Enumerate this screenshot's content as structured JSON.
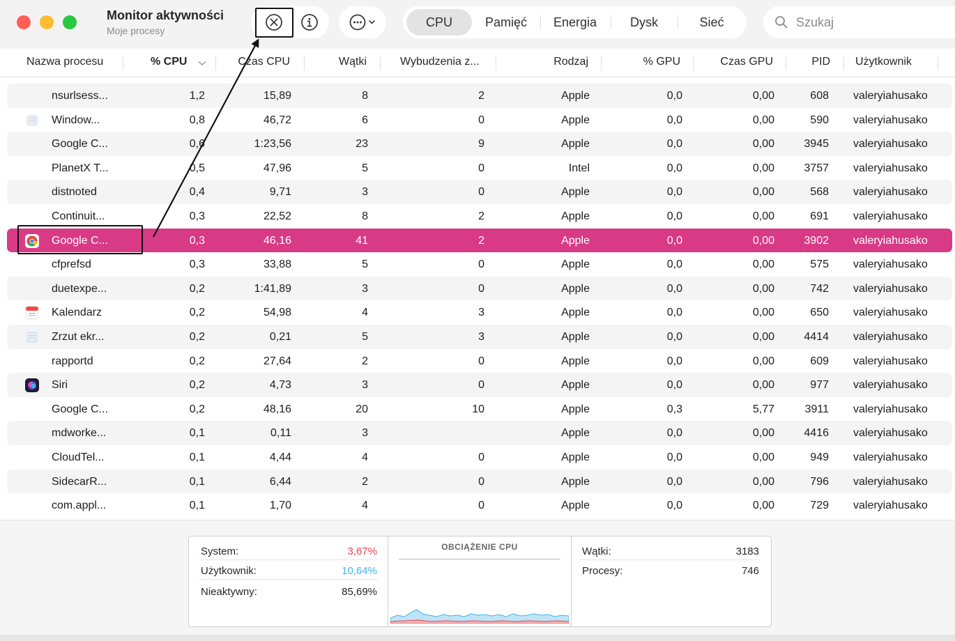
{
  "window": {
    "title": "Monitor aktywności",
    "subtitle": "Moje procesy"
  },
  "toolbar": {
    "stop_icon": "xmark-circle-icon",
    "info_icon": "info-circle-icon",
    "more_icon": "ellipsis-circle-icon"
  },
  "tabs": [
    {
      "label": "CPU",
      "active": true
    },
    {
      "label": "Pamięć",
      "active": false
    },
    {
      "label": "Energia",
      "active": false
    },
    {
      "label": "Dysk",
      "active": false
    },
    {
      "label": "Sieć",
      "active": false
    }
  ],
  "search": {
    "placeholder": "Szukaj"
  },
  "columns": {
    "name": "Nazwa procesu",
    "cpu": "% CPU",
    "cputime": "Czas CPU",
    "threads": "Wątki",
    "wakeups": "Wybudzenia z...",
    "kind": "Rodzaj",
    "gpu": "% GPU",
    "gputime": "Czas GPU",
    "pid": "PID",
    "user": "Użytkownik"
  },
  "rows": [
    {
      "name": "nsurlsess...",
      "cpu": "1,2",
      "cputime": "15,89",
      "threads": "8",
      "wakeups": "2",
      "kind": "Apple",
      "gpu": "0,0",
      "gputime": "0,00",
      "pid": "608",
      "user": "valeryiahusako",
      "icon": "none"
    },
    {
      "name": "Window...",
      "cpu": "0,8",
      "cputime": "46,72",
      "threads": "6",
      "wakeups": "0",
      "kind": "Apple",
      "gpu": "0,0",
      "gputime": "0,00",
      "pid": "590",
      "user": "valeryiahusako",
      "icon": "window-icon"
    },
    {
      "name": "Google C...",
      "cpu": "0,6",
      "cputime": "1:23,56",
      "threads": "23",
      "wakeups": "9",
      "kind": "Apple",
      "gpu": "0,0",
      "gputime": "0,00",
      "pid": "3945",
      "user": "valeryiahusako",
      "icon": "none"
    },
    {
      "name": "PlanetX T...",
      "cpu": "0,5",
      "cputime": "47,96",
      "threads": "5",
      "wakeups": "0",
      "kind": "Intel",
      "gpu": "0,0",
      "gputime": "0,00",
      "pid": "3757",
      "user": "valeryiahusako",
      "icon": "none"
    },
    {
      "name": "distnoted",
      "cpu": "0,4",
      "cputime": "9,71",
      "threads": "3",
      "wakeups": "0",
      "kind": "Apple",
      "gpu": "0,0",
      "gputime": "0,00",
      "pid": "568",
      "user": "valeryiahusako",
      "icon": "none"
    },
    {
      "name": "Continuit...",
      "cpu": "0,3",
      "cputime": "22,52",
      "threads": "8",
      "wakeups": "2",
      "kind": "Apple",
      "gpu": "0,0",
      "gputime": "0,00",
      "pid": "691",
      "user": "valeryiahusako",
      "icon": "none"
    },
    {
      "name": "Google C...",
      "cpu": "0,3",
      "cputime": "46,16",
      "threads": "41",
      "wakeups": "2",
      "kind": "Apple",
      "gpu": "0,0",
      "gputime": "0,00",
      "pid": "3902",
      "user": "valeryiahusako",
      "icon": "chrome-icon",
      "selected": true
    },
    {
      "name": "cfprefsd",
      "cpu": "0,3",
      "cputime": "33,88",
      "threads": "5",
      "wakeups": "0",
      "kind": "Apple",
      "gpu": "0,0",
      "gputime": "0,00",
      "pid": "575",
      "user": "valeryiahusako",
      "icon": "none"
    },
    {
      "name": "duetexpe...",
      "cpu": "0,2",
      "cputime": "1:41,89",
      "threads": "3",
      "wakeups": "0",
      "kind": "Apple",
      "gpu": "0,0",
      "gputime": "0,00",
      "pid": "742",
      "user": "valeryiahusako",
      "icon": "none"
    },
    {
      "name": "Kalendarz",
      "cpu": "0,2",
      "cputime": "54,98",
      "threads": "4",
      "wakeups": "3",
      "kind": "Apple",
      "gpu": "0,0",
      "gputime": "0,00",
      "pid": "650",
      "user": "valeryiahusako",
      "icon": "calendar-icon"
    },
    {
      "name": "Zrzut ekr...",
      "cpu": "0,2",
      "cputime": "0,21",
      "threads": "5",
      "wakeups": "3",
      "kind": "Apple",
      "gpu": "0,0",
      "gputime": "0,00",
      "pid": "4414",
      "user": "valeryiahusako",
      "icon": "window-icon"
    },
    {
      "name": "rapportd",
      "cpu": "0,2",
      "cputime": "27,64",
      "threads": "2",
      "wakeups": "0",
      "kind": "Apple",
      "gpu": "0,0",
      "gputime": "0,00",
      "pid": "609",
      "user": "valeryiahusako",
      "icon": "none"
    },
    {
      "name": "Siri",
      "cpu": "0,2",
      "cputime": "4,73",
      "threads": "3",
      "wakeups": "0",
      "kind": "Apple",
      "gpu": "0,0",
      "gputime": "0,00",
      "pid": "977",
      "user": "valeryiahusako",
      "icon": "siri-icon"
    },
    {
      "name": "Google C...",
      "cpu": "0,2",
      "cputime": "48,16",
      "threads": "20",
      "wakeups": "10",
      "kind": "Apple",
      "gpu": "0,3",
      "gputime": "5,77",
      "pid": "3911",
      "user": "valeryiahusako",
      "icon": "none"
    },
    {
      "name": "mdworke...",
      "cpu": "0,1",
      "cputime": "0,11",
      "threads": "3",
      "wakeups": "",
      "kind": "Apple",
      "gpu": "0,0",
      "gputime": "0,00",
      "pid": "4416",
      "user": "valeryiahusako",
      "icon": "none"
    },
    {
      "name": "CloudTel...",
      "cpu": "0,1",
      "cputime": "4,44",
      "threads": "4",
      "wakeups": "0",
      "kind": "Apple",
      "gpu": "0,0",
      "gputime": "0,00",
      "pid": "949",
      "user": "valeryiahusako",
      "icon": "none"
    },
    {
      "name": "SidecarR...",
      "cpu": "0,1",
      "cputime": "6,44",
      "threads": "2",
      "wakeups": "0",
      "kind": "Apple",
      "gpu": "0,0",
      "gputime": "0,00",
      "pid": "796",
      "user": "valeryiahusako",
      "icon": "none"
    },
    {
      "name": "com.appl...",
      "cpu": "0,1",
      "cputime": "1,70",
      "threads": "4",
      "wakeups": "0",
      "kind": "Apple",
      "gpu": "0,0",
      "gputime": "0,00",
      "pid": "729",
      "user": "valeryiahusako",
      "icon": "none"
    }
  ],
  "summary": {
    "system_label": "System:",
    "system_value": "3,67%",
    "user_label": "Użytkownik:",
    "user_value": "10,64%",
    "idle_label": "Nieaktywny:",
    "idle_value": "85,69%",
    "chart_title": "OBCIĄŻENIE CPU",
    "threads_label": "Wątki:",
    "threads_value": "3183",
    "processes_label": "Procesy:",
    "processes_value": "746"
  },
  "colors": {
    "selection": "#d83a86",
    "system": "#e8424a",
    "user": "#3bb5e8"
  }
}
